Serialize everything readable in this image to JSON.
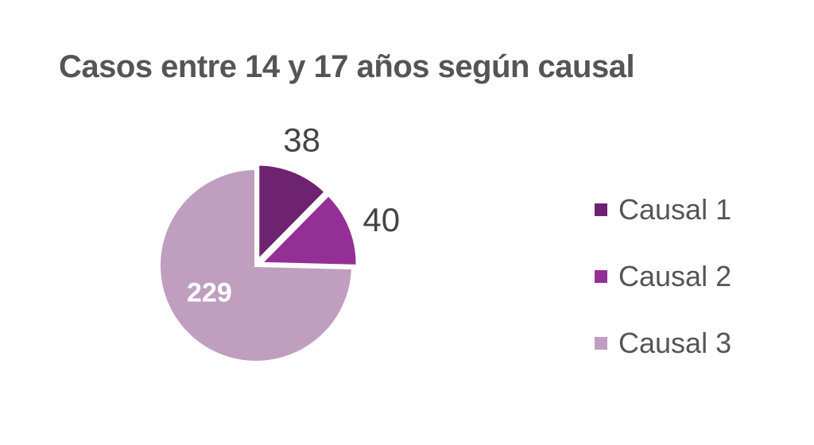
{
  "chart_data": {
    "type": "pie",
    "title": "Casos entre 14 y 17 años según causal",
    "categories": [
      "Causal 1",
      "Causal 2",
      "Causal 3"
    ],
    "values": [
      38,
      40,
      229
    ],
    "colors": [
      "#6e2370",
      "#943095",
      "#bf9ebf"
    ],
    "legend_position": "right",
    "start": "12 o'clock, clockwise",
    "exploded": true
  }
}
